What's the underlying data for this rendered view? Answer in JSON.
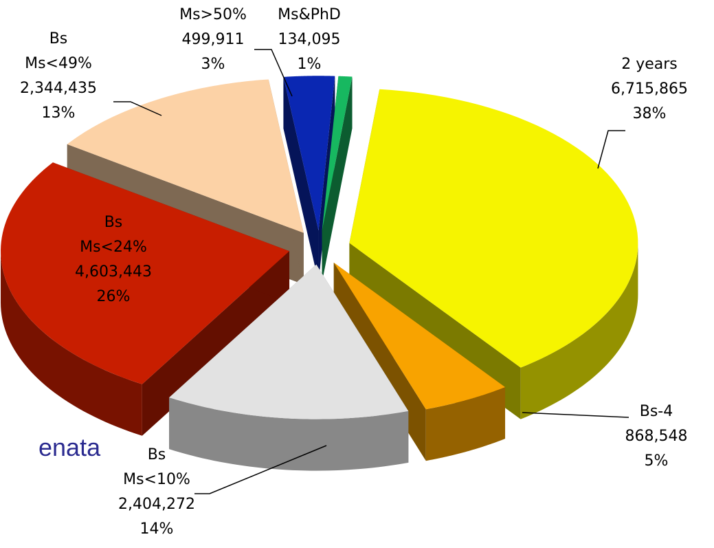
{
  "chart_data": {
    "type": "pie3d",
    "categories": [
      [
        "2 years"
      ],
      [
        "Bs-4"
      ],
      [
        "Bs",
        "Ms<10%"
      ],
      [
        "Bs",
        "Ms<24%"
      ],
      [
        "Bs",
        "Ms<49%"
      ],
      [
        "Ms>50%"
      ],
      [
        "Ms&PhD"
      ]
    ],
    "values": [
      6715865,
      868548,
      2404272,
      4603443,
      2344435,
      499911,
      134095
    ],
    "value_labels": [
      "6,715,865",
      "868,548",
      "2,404,272",
      "4,603,443",
      "2,344,435",
      "499,911",
      "134,095"
    ],
    "percent_labels": [
      "38%",
      "5%",
      "14%",
      "26%",
      "13%",
      "3%",
      "1%"
    ],
    "colors": [
      "#f6f400",
      "#f8a300",
      "#e2e2e2",
      "#c81e00",
      "#fcd2a6",
      "#0a27b2",
      "#17b860"
    ],
    "annotation": "enata"
  }
}
